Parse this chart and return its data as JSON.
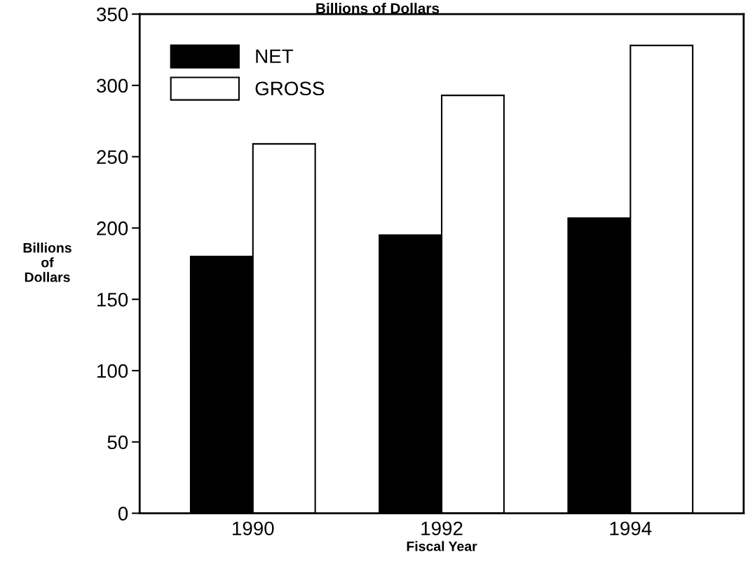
{
  "chart_data": {
    "type": "bar",
    "title": "Billions of Dollars",
    "xlabel": "Fiscal Year",
    "ylabel": "Billions\nof\nDollars",
    "categories": [
      "1990",
      "1992",
      "1994"
    ],
    "series": [
      {
        "name": "NET",
        "color": "#000000",
        "values": [
          180,
          195,
          207
        ]
      },
      {
        "name": "GROSS",
        "color": "#ffffff",
        "values": [
          259,
          293,
          328
        ]
      }
    ],
    "ylim": [
      0,
      350
    ],
    "yticks": [
      0,
      50,
      100,
      150,
      200,
      250,
      300,
      350
    ],
    "grid": false,
    "legend": "top left"
  }
}
